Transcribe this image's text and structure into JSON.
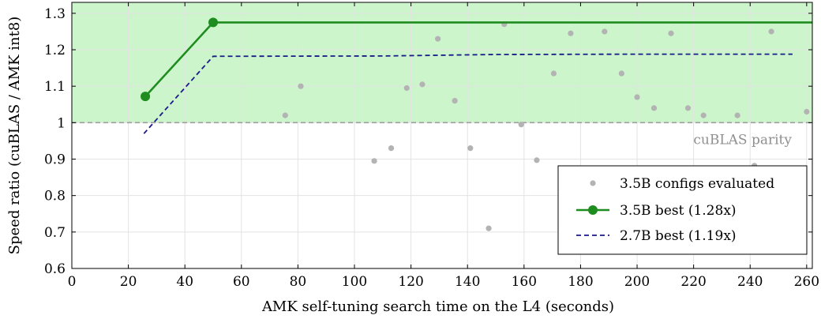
{
  "chart_data": {
    "type": "scatter",
    "title": "",
    "xlabel": "AMK self-tuning search time on the L4 (seconds)",
    "ylabel": "Speed ratio (cuBLAS / AMK int8)",
    "xlim": [
      0,
      262
    ],
    "ylim": [
      0.6,
      1.33
    ],
    "xticks": [
      0,
      20,
      40,
      60,
      80,
      100,
      120,
      140,
      160,
      180,
      200,
      220,
      240,
      260
    ],
    "yticks": [
      0.6,
      0.7,
      0.8,
      0.9,
      1.0,
      1.1,
      1.2,
      1.3
    ],
    "ytick_labels": [
      "0.6",
      "0.7",
      "0.8",
      "0.9",
      "1",
      "1.1",
      "1.2",
      "1.3"
    ],
    "grid": true,
    "shaded_region": {
      "y_from": 1.0,
      "y_to": 1.33,
      "color": "#ccf5cc"
    },
    "reference_line": {
      "y": 1.0,
      "label": "cuBLAS parity",
      "color": "#9e9e9e"
    },
    "legend_position": "bottom-right",
    "series": [
      {
        "name": "3.5B configs evaluated",
        "kind": "scatter",
        "color": "#b3b3b3",
        "points": [
          [
            75.5,
            1.02
          ],
          [
            81,
            1.1
          ],
          [
            107,
            0.895
          ],
          [
            113,
            0.93
          ],
          [
            118.5,
            1.095
          ],
          [
            124,
            1.105
          ],
          [
            129.5,
            1.23
          ],
          [
            135.5,
            1.06
          ],
          [
            141,
            0.93
          ],
          [
            147.5,
            0.71
          ],
          [
            153,
            1.27
          ],
          [
            159,
            0.995
          ],
          [
            164.5,
            0.897
          ],
          [
            170.5,
            1.135
          ],
          [
            176.5,
            1.245
          ],
          [
            182.5,
            0.67
          ],
          [
            188.5,
            1.25
          ],
          [
            194.5,
            1.135
          ],
          [
            200,
            1.07
          ],
          [
            206,
            1.04
          ],
          [
            212,
            1.245
          ],
          [
            218,
            1.04
          ],
          [
            223.5,
            1.02
          ],
          [
            229.5,
            0.67
          ],
          [
            235.5,
            1.02
          ],
          [
            241.5,
            0.882
          ],
          [
            247.5,
            1.25
          ],
          [
            253.5,
            0.664
          ],
          [
            260,
            1.03
          ]
        ]
      },
      {
        "name": "3.5B best (1.28x)",
        "kind": "line-markers",
        "color": "#1f8c1f",
        "points": [
          [
            26,
            1.072
          ],
          [
            50,
            1.275
          ],
          [
            262,
            1.275
          ]
        ],
        "marker_points": [
          [
            26,
            1.072
          ],
          [
            50,
            1.275
          ]
        ]
      },
      {
        "name": "2.7B best (1.19x)",
        "kind": "dashed-line",
        "color": "#1a1a8c",
        "points": [
          [
            25.5,
            0.97
          ],
          [
            50,
            1.182
          ],
          [
            110,
            1.183
          ],
          [
            150,
            1.187
          ],
          [
            200,
            1.188
          ],
          [
            255,
            1.188
          ]
        ]
      }
    ]
  }
}
